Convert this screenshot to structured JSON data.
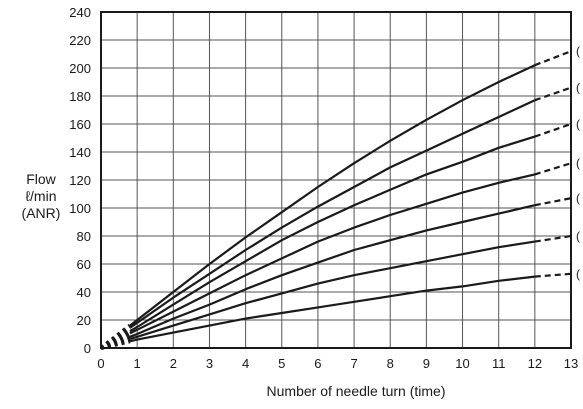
{
  "chart_data": {
    "type": "line",
    "title": "",
    "xlabel": "Number of needle turn (time)",
    "ylabel_lines": [
      "Flow",
      "ℓ/min",
      "(ANR)"
    ],
    "xlim": [
      0,
      13
    ],
    "ylim": [
      0,
      240
    ],
    "x_ticks": [
      "0",
      "1",
      "2",
      "3",
      "4",
      "5",
      "6",
      "7",
      "8",
      "9",
      "10",
      "11",
      "12",
      "13"
    ],
    "y_ticks": [
      "0",
      "20",
      "40",
      "60",
      "80",
      "100",
      "120",
      "140",
      "160",
      "180",
      "200",
      "220",
      "240"
    ],
    "grid": true,
    "solid_until_x": 12,
    "dashed_from_x": 0,
    "dashed_until_x": 0.8,
    "series": [
      {
        "end_label": "(",
        "points": [
          [
            0,
            0
          ],
          [
            1,
            6
          ],
          [
            2,
            11
          ],
          [
            3,
            16
          ],
          [
            4,
            21
          ],
          [
            5,
            25
          ],
          [
            6,
            29
          ],
          [
            7,
            33
          ],
          [
            8,
            37
          ],
          [
            9,
            41
          ],
          [
            10,
            44
          ],
          [
            11,
            48
          ],
          [
            12,
            51
          ],
          [
            13,
            53
          ]
        ]
      },
      {
        "end_label": "(",
        "points": [
          [
            0,
            0
          ],
          [
            1,
            8
          ],
          [
            2,
            16
          ],
          [
            3,
            24
          ],
          [
            4,
            32
          ],
          [
            5,
            39
          ],
          [
            6,
            46
          ],
          [
            7,
            52
          ],
          [
            8,
            57
          ],
          [
            9,
            62
          ],
          [
            10,
            67
          ],
          [
            11,
            72
          ],
          [
            12,
            76
          ],
          [
            13,
            80
          ]
        ]
      },
      {
        "end_label": "(",
        "points": [
          [
            0,
            0
          ],
          [
            1,
            10
          ],
          [
            2,
            21
          ],
          [
            3,
            31
          ],
          [
            4,
            42
          ],
          [
            5,
            52
          ],
          [
            6,
            61
          ],
          [
            7,
            70
          ],
          [
            8,
            77
          ],
          [
            9,
            84
          ],
          [
            10,
            90
          ],
          [
            11,
            96
          ],
          [
            12,
            102
          ],
          [
            13,
            107
          ]
        ]
      },
      {
        "end_label": "(",
        "points": [
          [
            0,
            0
          ],
          [
            1,
            13
          ],
          [
            2,
            26
          ],
          [
            3,
            39
          ],
          [
            4,
            52
          ],
          [
            5,
            64
          ],
          [
            6,
            76
          ],
          [
            7,
            86
          ],
          [
            8,
            95
          ],
          [
            9,
            103
          ],
          [
            10,
            111
          ],
          [
            11,
            118
          ],
          [
            12,
            124
          ],
          [
            13,
            132
          ]
        ]
      },
      {
        "end_label": "(",
        "points": [
          [
            0,
            0
          ],
          [
            1,
            15
          ],
          [
            2,
            31
          ],
          [
            3,
            47
          ],
          [
            4,
            62
          ],
          [
            5,
            77
          ],
          [
            6,
            90
          ],
          [
            7,
            102
          ],
          [
            8,
            113
          ],
          [
            9,
            124
          ],
          [
            10,
            133
          ],
          [
            11,
            143
          ],
          [
            12,
            151
          ],
          [
            13,
            160
          ]
        ]
      },
      {
        "end_label": "(",
        "points": [
          [
            0,
            0
          ],
          [
            1,
            18
          ],
          [
            2,
            36
          ],
          [
            3,
            53
          ],
          [
            4,
            70
          ],
          [
            5,
            86
          ],
          [
            6,
            101
          ],
          [
            7,
            115
          ],
          [
            8,
            129
          ],
          [
            9,
            141
          ],
          [
            10,
            153
          ],
          [
            11,
            165
          ],
          [
            12,
            177
          ],
          [
            13,
            186
          ]
        ]
      },
      {
        "end_label": "(",
        "points": [
          [
            0,
            0
          ],
          [
            1,
            20
          ],
          [
            2,
            40
          ],
          [
            3,
            60
          ],
          [
            4,
            79
          ],
          [
            5,
            97
          ],
          [
            6,
            115
          ],
          [
            7,
            132
          ],
          [
            8,
            148
          ],
          [
            9,
            163
          ],
          [
            10,
            177
          ],
          [
            11,
            190
          ],
          [
            12,
            202
          ],
          [
            13,
            212
          ]
        ]
      }
    ]
  }
}
